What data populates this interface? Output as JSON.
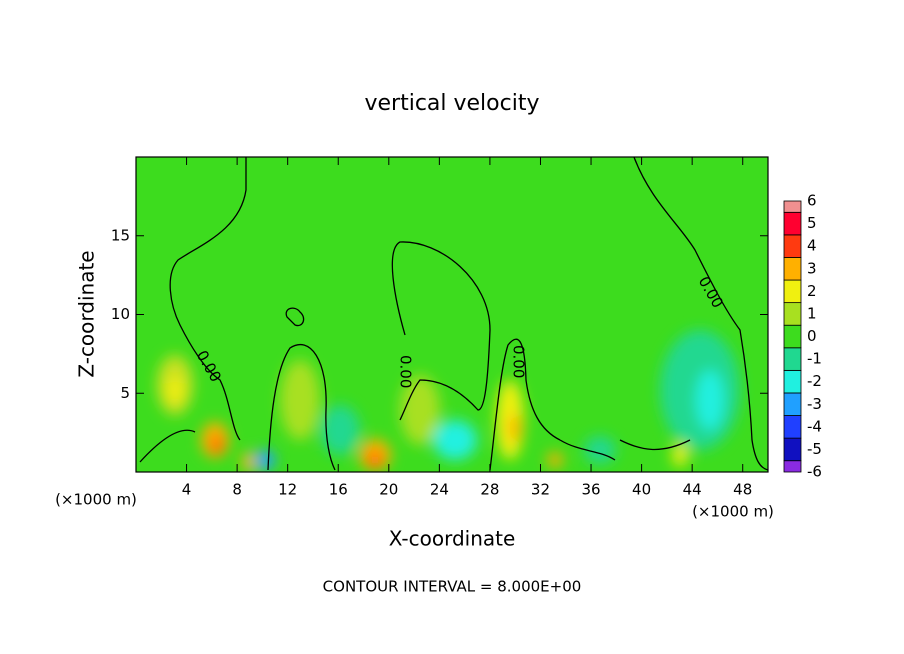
{
  "chart_data": {
    "type": "contour",
    "title": "vertical velocity",
    "x_label": "X-coordinate",
    "y_label": "Z-coordinate",
    "x_units": "(×1000 m)",
    "footer": "CONTOUR INTERVAL = 8.000E+00",
    "contour_label": "0.00",
    "xlim": [
      0,
      50
    ],
    "xticks": [
      4,
      8,
      12,
      16,
      20,
      24,
      28,
      32,
      36,
      40,
      44,
      48
    ],
    "ylim": [
      0,
      20
    ],
    "yticks": [
      5,
      10,
      15
    ],
    "background_color": "#3ddc1e",
    "colorbar": {
      "levels": [
        -6,
        -5,
        -4,
        -3,
        -2,
        -1,
        0,
        1,
        2,
        3,
        4,
        5,
        6
      ],
      "colors": [
        "#8a2be2",
        "#1010c0",
        "#2040ff",
        "#20a0ff",
        "#20f0e0",
        "#20d890",
        "#3ddc1e",
        "#a8e020",
        "#f0f010",
        "#ffb000",
        "#ff3a10",
        "#ff0030",
        "#f09090"
      ]
    }
  }
}
